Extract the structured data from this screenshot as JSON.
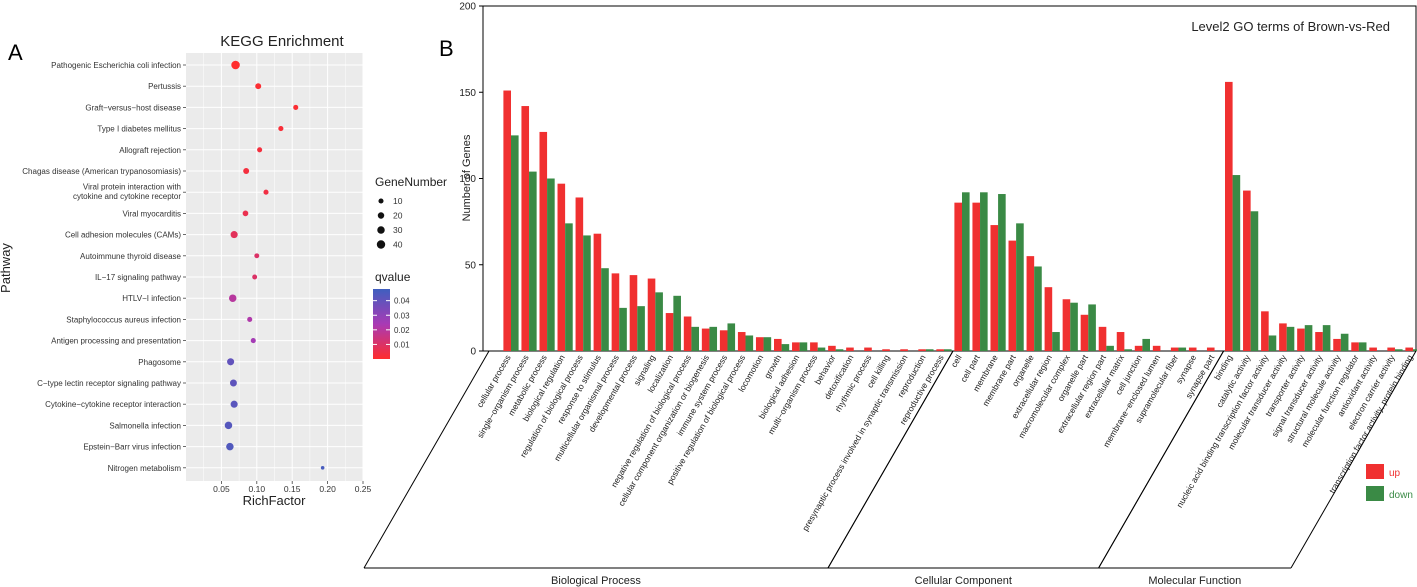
{
  "chart_data": [
    {
      "panel": "A",
      "type": "scatter",
      "title": "KEGG Enrichment",
      "xlabel": "RichFactor",
      "ylabel": "Pathway",
      "xlim": [
        0.0,
        0.25
      ],
      "xticks": [
        "0.05",
        "0.10",
        "0.15",
        "0.20",
        "0.25"
      ],
      "points": [
        {
          "pathway": "Pathogenic Escherichia coli infection",
          "rich_factor": 0.07,
          "gene_number": 42,
          "qvalue": 0.0
        },
        {
          "pathway": "Pertussis",
          "rich_factor": 0.102,
          "gene_number": 16,
          "qvalue": 0.001
        },
        {
          "pathway": "Graft−versus−host disease",
          "rich_factor": 0.155,
          "gene_number": 10,
          "qvalue": 0.001
        },
        {
          "pathway": "Type I diabetes mellitus",
          "rich_factor": 0.134,
          "gene_number": 10,
          "qvalue": 0.002
        },
        {
          "pathway": "Allograft rejection",
          "rich_factor": 0.104,
          "gene_number": 10,
          "qvalue": 0.003
        },
        {
          "pathway": "Chagas disease (American trypanosomiasis)",
          "rich_factor": 0.085,
          "gene_number": 16,
          "qvalue": 0.003
        },
        {
          "pathway": "Viral protein interaction with\ncytokine and cytokine receptor",
          "rich_factor": 0.113,
          "gene_number": 10,
          "qvalue": 0.004
        },
        {
          "pathway": "Viral myocarditis",
          "rich_factor": 0.084,
          "gene_number": 14,
          "qvalue": 0.006
        },
        {
          "pathway": "Cell adhesion molecules (CAMs)",
          "rich_factor": 0.068,
          "gene_number": 26,
          "qvalue": 0.008
        },
        {
          "pathway": "Autoimmune thyroid disease",
          "rich_factor": 0.1,
          "gene_number": 9,
          "qvalue": 0.01
        },
        {
          "pathway": "IL−17 signaling pathway",
          "rich_factor": 0.097,
          "gene_number": 9,
          "qvalue": 0.01
        },
        {
          "pathway": "HTLV−I infection",
          "rich_factor": 0.066,
          "gene_number": 30,
          "qvalue": 0.02
        },
        {
          "pathway": "Staphylococcus aureus infection",
          "rich_factor": 0.09,
          "gene_number": 10,
          "qvalue": 0.022
        },
        {
          "pathway": "Antigen processing and presentation",
          "rich_factor": 0.095,
          "gene_number": 10,
          "qvalue": 0.025
        },
        {
          "pathway": "Phagosome",
          "rich_factor": 0.063,
          "gene_number": 26,
          "qvalue": 0.04
        },
        {
          "pathway": "C−type lectin receptor signaling pathway",
          "rich_factor": 0.067,
          "gene_number": 24,
          "qvalue": 0.041
        },
        {
          "pathway": "Cytokine−cytokine receptor interaction",
          "rich_factor": 0.068,
          "gene_number": 26,
          "qvalue": 0.042
        },
        {
          "pathway": "Salmonella infection",
          "rich_factor": 0.06,
          "gene_number": 30,
          "qvalue": 0.043
        },
        {
          "pathway": "Epstein−Barr virus infection",
          "rich_factor": 0.062,
          "gene_number": 30,
          "qvalue": 0.044
        },
        {
          "pathway": "Nitrogen metabolism",
          "rich_factor": 0.193,
          "gene_number": 3,
          "qvalue": 0.046
        }
      ],
      "size_legend": {
        "title": "GeneNumber",
        "values": [
          10,
          20,
          30,
          40
        ]
      },
      "color_legend": {
        "title": "qvalue",
        "ticks": [
          "0.04",
          "0.03",
          "0.02",
          "0.01"
        ],
        "low_color": "#ff2d2d",
        "high_color": "#3f5fbf",
        "range": [
          0.0,
          0.048
        ]
      }
    },
    {
      "panel": "B",
      "type": "bar",
      "title": "Level2 GO terms of Brown-vs-Red",
      "ylabel": "Number of Genes",
      "ylim": [
        0,
        200
      ],
      "yticks": [
        "0",
        "50",
        "100",
        "150",
        "200"
      ],
      "series": [
        {
          "name": "up",
          "color": "#f03030"
        },
        {
          "name": "down",
          "color": "#3a8a45"
        }
      ],
      "categories": [
        {
          "label": "cellular process",
          "up": 151,
          "down": 125
        },
        {
          "label": "single−organism process",
          "up": 142,
          "down": 104
        },
        {
          "label": "metabolic process",
          "up": 127,
          "down": 100
        },
        {
          "label": "biological regulation",
          "up": 97,
          "down": 74
        },
        {
          "label": "regulation of biological process",
          "up": 89,
          "down": 67
        },
        {
          "label": "response to stimulus",
          "up": 68,
          "down": 48
        },
        {
          "label": "multicellular organismal process",
          "up": 45,
          "down": 25
        },
        {
          "label": "developmental process",
          "up": 44,
          "down": 26
        },
        {
          "label": "signaling",
          "up": 42,
          "down": 34
        },
        {
          "label": "localization",
          "up": 22,
          "down": 32
        },
        {
          "label": "negative regulation of biological process",
          "up": 20,
          "down": 14
        },
        {
          "label": "cellular component organization or biogenesis",
          "up": 13,
          "down": 14
        },
        {
          "label": "immune system process",
          "up": 12,
          "down": 16
        },
        {
          "label": "positive regulation of biological process",
          "up": 11,
          "down": 9
        },
        {
          "label": "locomotion",
          "up": 8,
          "down": 8
        },
        {
          "label": "growth",
          "up": 7,
          "down": 4
        },
        {
          "label": "biological adhesion",
          "up": 5,
          "down": 5
        },
        {
          "label": "multi−organism process",
          "up": 5,
          "down": 2
        },
        {
          "label": "behavior",
          "up": 3,
          "down": 1
        },
        {
          "label": "detoxification",
          "up": 2,
          "down": 0
        },
        {
          "label": "rhythmic process",
          "up": 2,
          "down": 0
        },
        {
          "label": "cell killing",
          "up": 1,
          "down": 0
        },
        {
          "label": "presynaptic process involved in synaptic transmission",
          "up": 1,
          "down": 0
        },
        {
          "label": "reproduction",
          "up": 1,
          "down": 1
        },
        {
          "label": "reproductive process",
          "up": 1,
          "down": 1
        },
        {
          "label": "cell",
          "up": 86,
          "down": 92
        },
        {
          "label": "cell part",
          "up": 86,
          "down": 92
        },
        {
          "label": "membrane",
          "up": 73,
          "down": 91
        },
        {
          "label": "membrane part",
          "up": 64,
          "down": 74
        },
        {
          "label": "organelle",
          "up": 55,
          "down": 49
        },
        {
          "label": "extracellular region",
          "up": 37,
          "down": 11
        },
        {
          "label": "macromolecular complex",
          "up": 30,
          "down": 28
        },
        {
          "label": "organelle part",
          "up": 21,
          "down": 27
        },
        {
          "label": "extracellular region part",
          "up": 14,
          "down": 3
        },
        {
          "label": "extracellular matrix",
          "up": 11,
          "down": 1
        },
        {
          "label": "cell junction",
          "up": 3,
          "down": 7
        },
        {
          "label": "membrane−enclosed lumen",
          "up": 3,
          "down": 0
        },
        {
          "label": "supramolecular fiber",
          "up": 2,
          "down": 2
        },
        {
          "label": "synapse",
          "up": 2,
          "down": 0
        },
        {
          "label": "synapse part",
          "up": 2,
          "down": 0
        },
        {
          "label": "binding",
          "up": 156,
          "down": 102
        },
        {
          "label": "catalytic activity",
          "up": 93,
          "down": 81
        },
        {
          "label": "nucleic acid binding transcription factor activity",
          "up": 23,
          "down": 9
        },
        {
          "label": "molecular transducer activity",
          "up": 16,
          "down": 14
        },
        {
          "label": "transporter activity",
          "up": 13,
          "down": 15
        },
        {
          "label": "signal transducer activity",
          "up": 11,
          "down": 15
        },
        {
          "label": "structural molecule activity",
          "up": 7,
          "down": 10
        },
        {
          "label": "molecular function regulator",
          "up": 5,
          "down": 5
        },
        {
          "label": "antioxidant activity",
          "up": 2,
          "down": 0
        },
        {
          "label": "electron carrier activity",
          "up": 2,
          "down": 1
        },
        {
          "label": "transcription factor activity, protein binding",
          "up": 2,
          "down": 1
        }
      ],
      "groups": [
        {
          "name": "Biological Process",
          "start": 0,
          "end": 24
        },
        {
          "name": "Cellular Component",
          "start": 25,
          "end": 39
        },
        {
          "name": "Molecular Function",
          "start": 40,
          "end": 50
        }
      ]
    }
  ]
}
